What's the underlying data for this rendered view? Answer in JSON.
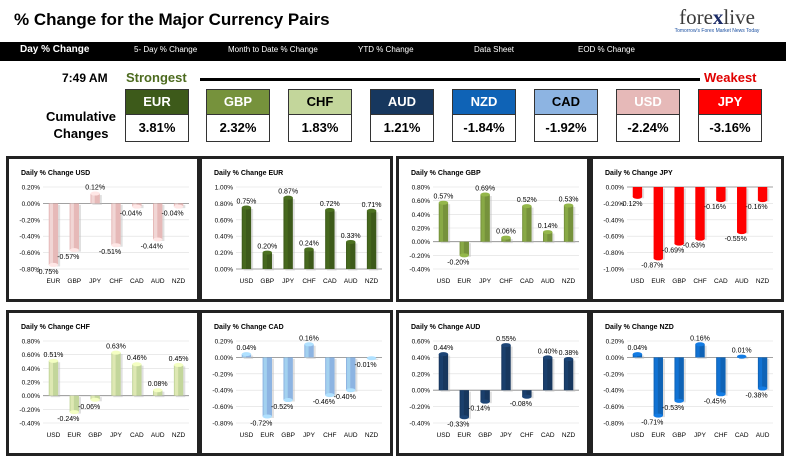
{
  "header": {
    "title": "% Change for the Major Currency Pairs",
    "logo_text_a": "fore",
    "logo_text_x": "x",
    "logo_text_b": "live",
    "logo_tagline": "Tomorrow's Forex Market News Today"
  },
  "nav": [
    {
      "label": "Day % Change",
      "active": true
    },
    {
      "label": "5- Day % Change",
      "active": false
    },
    {
      "label": "Month to Date % Change",
      "active": false
    },
    {
      "label": "YTD % Change",
      "active": false
    },
    {
      "label": "Data Sheet",
      "active": false
    },
    {
      "label": "EOD % Change",
      "active": false
    }
  ],
  "summary": {
    "time": "7:49 AM",
    "strongest_label": "Strongest",
    "weakest_label": "Weakest",
    "cumulative_label_line1": "Cumulative",
    "cumulative_label_line2": "Changes",
    "currencies": [
      {
        "code": "EUR",
        "value": "3.81%",
        "bg": "#3d5a1a",
        "fg": "#ffffff"
      },
      {
        "code": "GBP",
        "value": "2.32%",
        "bg": "#76923c",
        "fg": "#ffffff"
      },
      {
        "code": "CHF",
        "value": "1.83%",
        "bg": "#c3d69b",
        "fg": "#000000"
      },
      {
        "code": "AUD",
        "value": "1.21%",
        "bg": "#17375e",
        "fg": "#ffffff"
      },
      {
        "code": "NZD",
        "value": "-1.84%",
        "bg": "#0f63b6",
        "fg": "#ffffff"
      },
      {
        "code": "CAD",
        "value": "-1.92%",
        "bg": "#8db4e2",
        "fg": "#000000"
      },
      {
        "code": "USD",
        "value": "-2.24%",
        "bg": "#e6b9b8",
        "fg": "#ffffff"
      },
      {
        "code": "JPY",
        "value": "-3.16%",
        "bg": "#ff0000",
        "fg": "#ffffff"
      }
    ]
  },
  "chart_data": [
    {
      "type": "bar",
      "title": "Daily % Change USD",
      "categories": [
        "EUR",
        "GBP",
        "JPY",
        "CHF",
        "CAD",
        "AUD",
        "NZD"
      ],
      "values": [
        -0.75,
        -0.57,
        0.12,
        -0.51,
        -0.04,
        -0.44,
        -0.04
      ],
      "labels": [
        "-0.75%",
        "-0.57%",
        "0.12%",
        "-0.51%",
        "-0.04%",
        "-0.44%",
        "-0.04%"
      ],
      "ylim": [
        -0.8,
        0.2
      ],
      "yticks": [
        "0.20%",
        "0.00%",
        "-0.20%",
        "-0.40%",
        "-0.60%",
        "-0.80%"
      ],
      "color": "#e6b9b8"
    },
    {
      "type": "bar",
      "title": "Daily % Change EUR",
      "categories": [
        "USD",
        "GBP",
        "JPY",
        "CHF",
        "CAD",
        "AUD",
        "NZD"
      ],
      "values": [
        0.75,
        0.2,
        0.87,
        0.24,
        0.72,
        0.33,
        0.71
      ],
      "labels": [
        "0.75%",
        "0.20%",
        "0.87%",
        "0.24%",
        "0.72%",
        "0.33%",
        "0.71%"
      ],
      "ylim": [
        0,
        1.0
      ],
      "yticks": [
        "1.00%",
        "0.80%",
        "0.60%",
        "0.40%",
        "0.20%",
        "0.00%"
      ],
      "color": "#3d5a1a"
    },
    {
      "type": "bar",
      "title": "Daily % Change GBP",
      "categories": [
        "USD",
        "EUR",
        "JPY",
        "CHF",
        "CAD",
        "AUD",
        "NZD"
      ],
      "values": [
        0.57,
        -0.2,
        0.69,
        0.06,
        0.52,
        0.14,
        0.53
      ],
      "labels": [
        "0.57%",
        "-0.20%",
        "0.69%",
        "0.06%",
        "0.52%",
        "0.14%",
        "0.53%"
      ],
      "ylim": [
        -0.4,
        0.8
      ],
      "yticks": [
        "0.80%",
        "0.60%",
        "0.40%",
        "0.20%",
        "0.00%",
        "-0.20%",
        "-0.40%"
      ],
      "color": "#76923c"
    },
    {
      "type": "bar",
      "title": "Daily % Change JPY",
      "categories": [
        "USD",
        "EUR",
        "GBP",
        "CHF",
        "CAD",
        "AUD",
        "NZD"
      ],
      "values": [
        -0.12,
        -0.87,
        -0.69,
        -0.63,
        -0.16,
        -0.55,
        -0.16
      ],
      "labels": [
        "-0.12%",
        "-0.87%",
        "-0.69%",
        "-0.63%",
        "-0.16%",
        "-0.55%",
        "-0.16%"
      ],
      "ylim": [
        -1.0,
        0
      ],
      "yticks": [
        "0.00%",
        "-0.20%",
        "-0.40%",
        "-0.60%",
        "-0.80%",
        "-1.00%"
      ],
      "color": "#ff0000"
    },
    {
      "type": "bar",
      "title": "Daily % Change CHF",
      "categories": [
        "USD",
        "EUR",
        "GBP",
        "JPY",
        "CAD",
        "AUD",
        "NZD"
      ],
      "values": [
        0.51,
        -0.24,
        -0.06,
        0.63,
        0.46,
        0.08,
        0.45
      ],
      "labels": [
        "0.51%",
        "-0.24%",
        "-0.06%",
        "0.63%",
        "0.46%",
        "0.08%",
        "0.45%"
      ],
      "ylim": [
        -0.4,
        0.8
      ],
      "yticks": [
        "0.80%",
        "0.60%",
        "0.40%",
        "0.20%",
        "0.00%",
        "-0.20%",
        "-0.40%"
      ],
      "color": "#c3d69b"
    },
    {
      "type": "bar",
      "title": "Daily % Change CAD",
      "categories": [
        "USD",
        "EUR",
        "GBP",
        "JPY",
        "CHF",
        "AUD",
        "NZD"
      ],
      "values": [
        0.04,
        -0.72,
        -0.52,
        0.16,
        -0.46,
        -0.4,
        -0.01
      ],
      "labels": [
        "0.04%",
        "-0.72%",
        "-0.52%",
        "0.16%",
        "-0.46%",
        "-0.40%",
        "-0.01%"
      ],
      "ylim": [
        -0.8,
        0.2
      ],
      "yticks": [
        "0.20%",
        "0.00%",
        "-0.20%",
        "-0.40%",
        "-0.60%",
        "-0.80%"
      ],
      "color": "#8db4e2"
    },
    {
      "type": "bar",
      "title": "Daily % Change AUD",
      "categories": [
        "USD",
        "EUR",
        "GBP",
        "JPY",
        "CHF",
        "CAD",
        "NZD"
      ],
      "values": [
        0.44,
        -0.33,
        -0.14,
        0.55,
        -0.08,
        0.4,
        0.38
      ],
      "labels": [
        "0.44%",
        "-0.33%",
        "-0.14%",
        "0.55%",
        "-0.08%",
        "0.40%",
        "0.38%"
      ],
      "ylim": [
        -0.4,
        0.6
      ],
      "yticks": [
        "0.60%",
        "0.40%",
        "0.20%",
        "0.00%",
        "-0.20%",
        "-0.40%"
      ],
      "color": "#17375e"
    },
    {
      "type": "bar",
      "title": "Daily % Change NZD",
      "categories": [
        "USD",
        "EUR",
        "GBP",
        "JPY",
        "CHF",
        "CAD",
        "AUD"
      ],
      "values": [
        0.04,
        -0.71,
        -0.53,
        0.16,
        -0.45,
        0.01,
        -0.38
      ],
      "labels": [
        "0.04%",
        "-0.71%",
        "-0.53%",
        "0.16%",
        "-0.45%",
        "0.01%",
        "-0.38%"
      ],
      "ylim": [
        -0.8,
        0.2
      ],
      "yticks": [
        "0.20%",
        "0.00%",
        "-0.20%",
        "-0.40%",
        "-0.60%",
        "-0.80%"
      ],
      "color": "#0f63b6"
    }
  ]
}
